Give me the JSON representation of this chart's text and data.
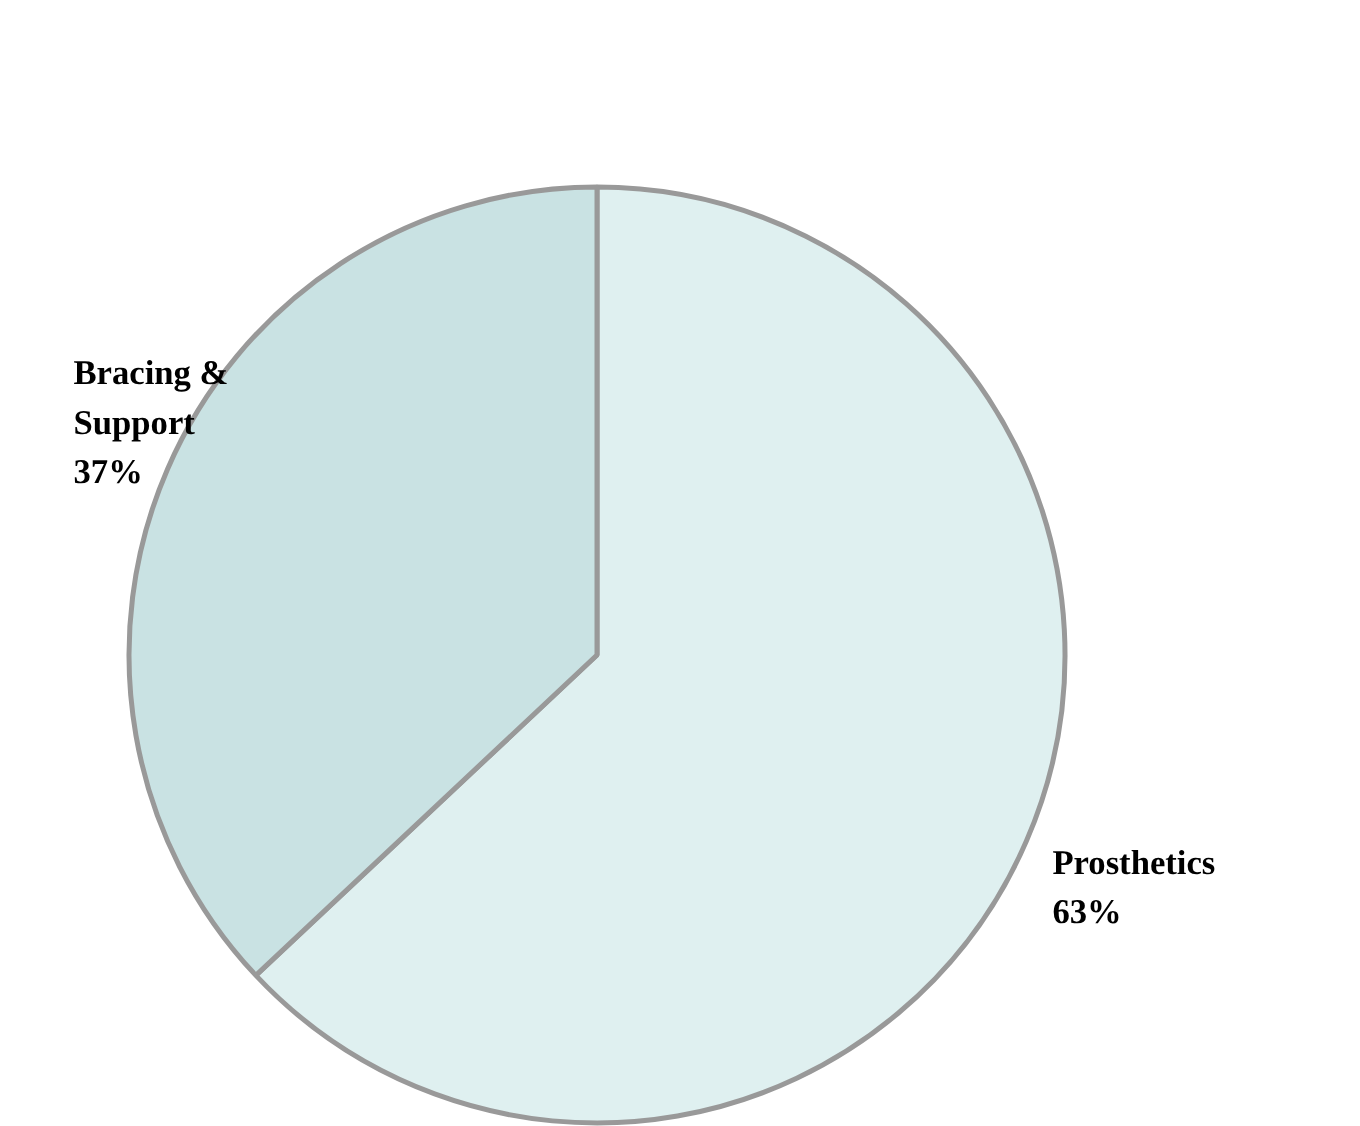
{
  "chart_data": {
    "type": "pie",
    "categories": [
      "Prosthetics",
      "Bracing & Support"
    ],
    "values": [
      63,
      37
    ],
    "colors": [
      "#dff0f0",
      "#c9e2e3"
    ],
    "value_labels": [
      "63%",
      "37%"
    ]
  }
}
